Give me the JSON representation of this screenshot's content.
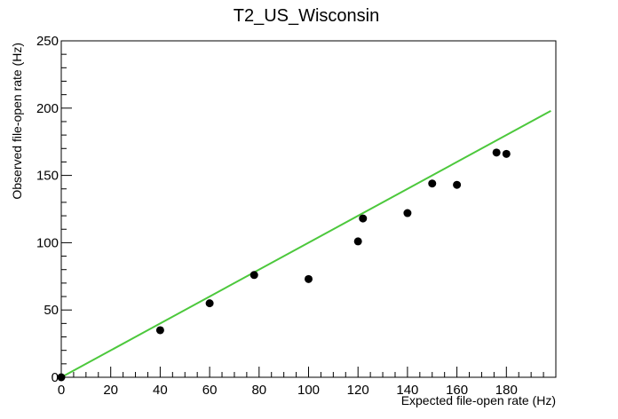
{
  "chart_data": {
    "type": "scatter",
    "title": "T2_US_Wisconsin",
    "xlabel": "Expected file-open rate (Hz)",
    "ylabel": "Observed file-open rate (Hz)",
    "xlim": [
      0,
      200
    ],
    "ylim": [
      0,
      250
    ],
    "x_ticks": [
      0,
      20,
      40,
      60,
      80,
      100,
      120,
      140,
      160,
      180
    ],
    "y_ticks": [
      0,
      50,
      100,
      150,
      200,
      250
    ],
    "grid": false,
    "points": [
      {
        "x": 0,
        "y": 0
      },
      {
        "x": 40,
        "y": 35
      },
      {
        "x": 60,
        "y": 55
      },
      {
        "x": 78,
        "y": 76
      },
      {
        "x": 100,
        "y": 73
      },
      {
        "x": 120,
        "y": 101
      },
      {
        "x": 122,
        "y": 118
      },
      {
        "x": 140,
        "y": 122
      },
      {
        "x": 150,
        "y": 144
      },
      {
        "x": 160,
        "y": 143
      },
      {
        "x": 176,
        "y": 167
      },
      {
        "x": 180,
        "y": 166
      }
    ],
    "reference_line": {
      "x": [
        0,
        198
      ],
      "y": [
        0,
        198
      ],
      "color": "#4cc83c"
    },
    "marker_color": "#000000"
  }
}
